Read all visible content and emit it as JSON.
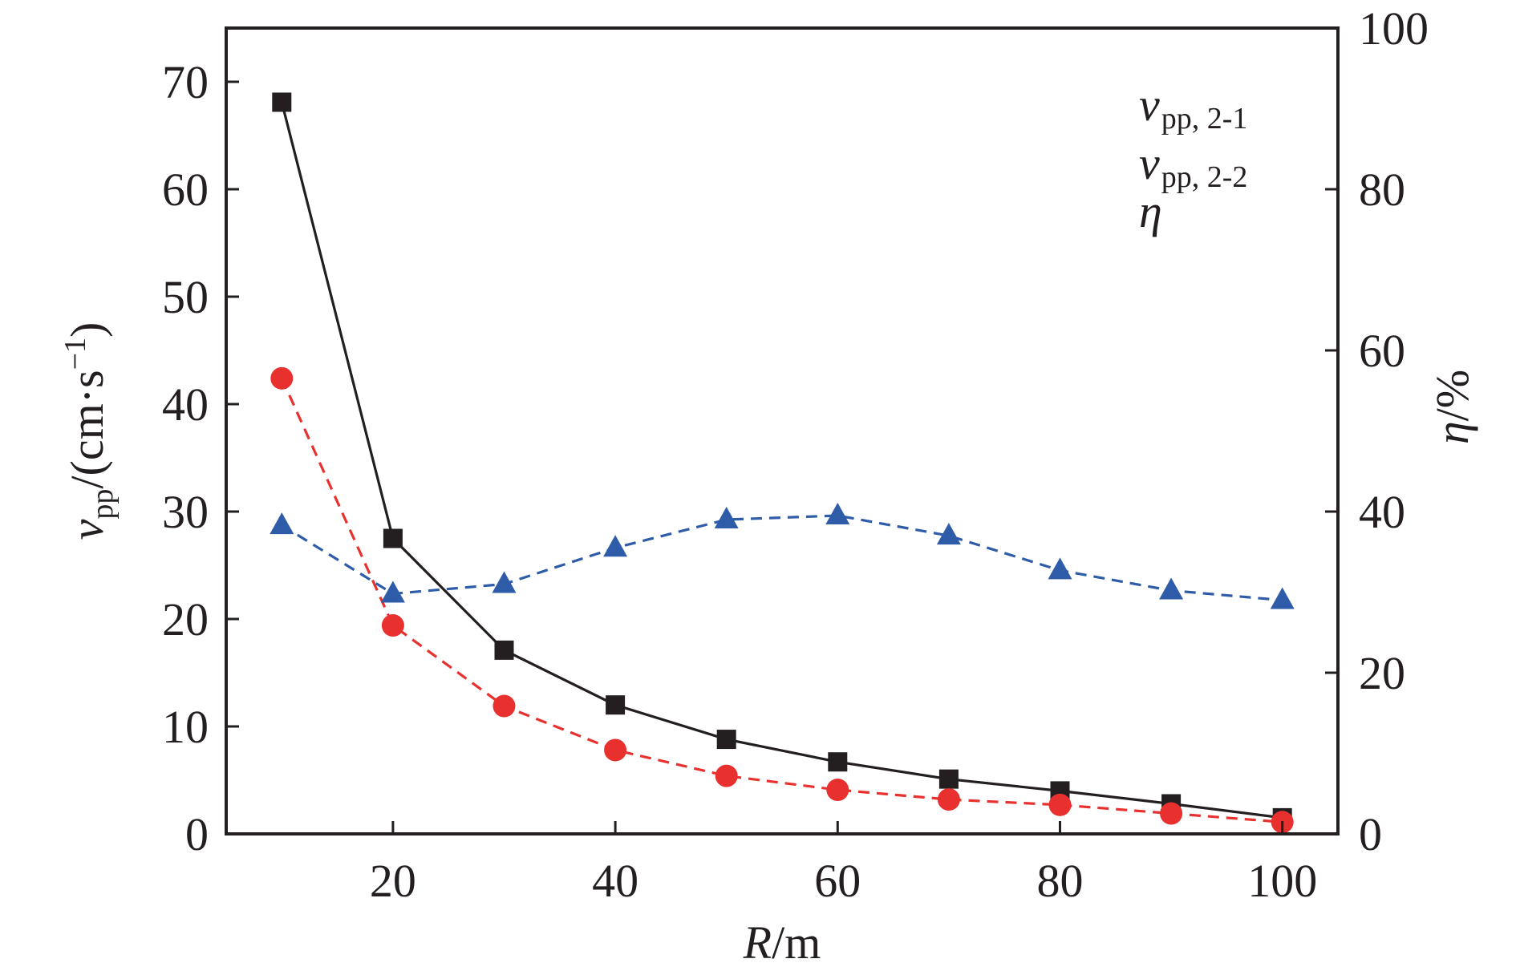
{
  "chart_data": {
    "type": "line",
    "x": [
      10,
      20,
      30,
      40,
      50,
      60,
      70,
      80,
      90,
      100
    ],
    "xlabel": {
      "var": "R",
      "unit": "/m"
    },
    "ylabel_left": {
      "var": "v",
      "sub": "pp",
      "unit": "/(cm·s",
      "sup": "−1",
      "close": ")"
    },
    "ylabel_right": {
      "var": "η",
      "unit": "/%"
    },
    "xlim": [
      5,
      105
    ],
    "ylim_left": [
      0,
      75
    ],
    "ylim_right": [
      0,
      100
    ],
    "xticks": [
      20,
      40,
      60,
      80,
      100
    ],
    "yticks_left": [
      0,
      10,
      20,
      30,
      40,
      50,
      60,
      70
    ],
    "yticks_right": [
      0,
      20,
      40,
      60,
      80,
      100
    ],
    "legend_position": "top-right",
    "grid": false,
    "series": [
      {
        "name": {
          "var": "v",
          "sub": "pp, 2-1"
        },
        "axis": "left",
        "color": "#231f20",
        "marker": "square",
        "line": "solid",
        "values": [
          68.1,
          27.5,
          17.1,
          12.0,
          8.8,
          6.7,
          5.1,
          4.0,
          2.8,
          1.5
        ]
      },
      {
        "name": {
          "var": "v",
          "sub": "pp, 2-2"
        },
        "axis": "left",
        "color": "#e8312f",
        "marker": "circle",
        "line": "dashed",
        "values": [
          42.4,
          19.4,
          11.9,
          7.8,
          5.4,
          4.1,
          3.2,
          2.7,
          1.9,
          1.1
        ]
      },
      {
        "name": {
          "var": "η",
          "sub": ""
        },
        "axis": "right",
        "color": "#2f5ca8",
        "marker": "triangle",
        "line": "dashed",
        "values": [
          38.3,
          29.8,
          31.0,
          35.5,
          39.0,
          39.5,
          37.0,
          32.7,
          30.2,
          29.0
        ]
      }
    ]
  }
}
